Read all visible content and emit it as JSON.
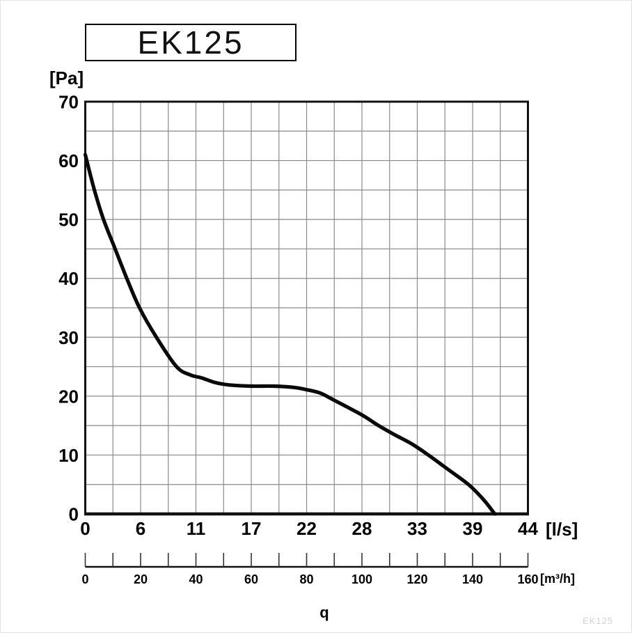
{
  "title": "EK125",
  "watermark": "EK125",
  "chart_data": {
    "type": "line",
    "title": "EK125",
    "grid": true,
    "legend": "none",
    "y_axis": {
      "unit_label": "[Pa]",
      "min": 0,
      "max": 70,
      "tick_step": 10,
      "grid_step_pa": 5,
      "ticks": [
        0,
        10,
        20,
        30,
        40,
        50,
        60,
        70
      ]
    },
    "x_axis_primary": {
      "unit_label": "[l/s]",
      "quantity_label": "q",
      "ticks": [
        0,
        6,
        11,
        17,
        22,
        28,
        33,
        39,
        44
      ]
    },
    "x_axis_secondary": {
      "unit_label": "[m³/h]",
      "min": 0,
      "max": 160,
      "tick_step_m3h": 10,
      "label_step_m3h": 20,
      "ticks": [
        0,
        20,
        40,
        60,
        80,
        100,
        120,
        140,
        160
      ]
    },
    "series": [
      {
        "name": "EK125 pressure curve",
        "points_m3h_pa": [
          [
            0,
            61
          ],
          [
            3.3,
            55
          ],
          [
            6.6,
            50
          ],
          [
            10.8,
            45
          ],
          [
            15,
            40
          ],
          [
            19.6,
            35
          ],
          [
            25.7,
            30
          ],
          [
            33,
            25
          ],
          [
            38,
            23.6
          ],
          [
            42,
            23.1
          ],
          [
            47,
            22.3
          ],
          [
            52,
            21.9
          ],
          [
            60,
            21.7
          ],
          [
            68,
            21.7
          ],
          [
            75,
            21.5
          ],
          [
            80,
            21.1
          ],
          [
            85,
            20.5
          ],
          [
            90,
            19.3
          ],
          [
            100,
            16.8
          ],
          [
            106,
            15
          ],
          [
            112,
            13.4
          ],
          [
            118,
            11.9
          ],
          [
            124,
            10
          ],
          [
            131,
            7.6
          ],
          [
            138.5,
            5
          ],
          [
            144,
            2.4
          ],
          [
            148,
            0
          ]
        ]
      }
    ],
    "colors": {
      "curve": "#0a0a0a",
      "grid": "#8a8a8a",
      "axis_border": "#111111",
      "text": "#000000"
    }
  }
}
